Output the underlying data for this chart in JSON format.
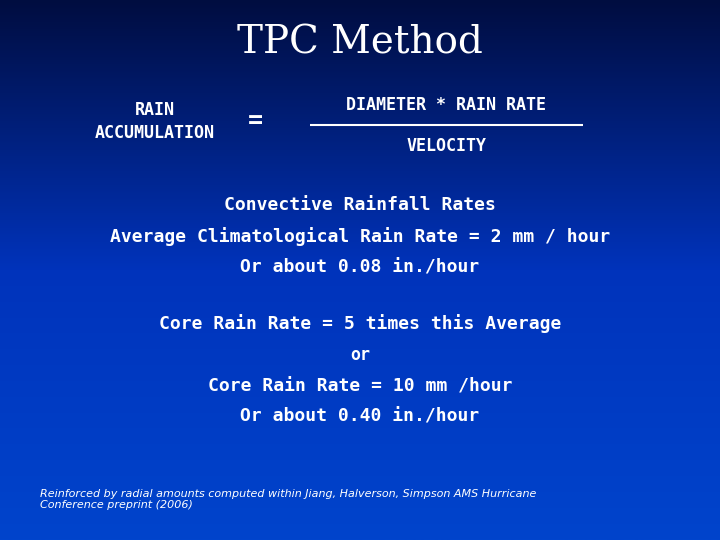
{
  "title": "TPC Method",
  "bg_color_top": "#000d40",
  "bg_color_mid": "#0033bb",
  "text_color": "#ffffff",
  "title_fontsize": 28,
  "formula_left": "RAIN\nACCUMULATION",
  "formula_eq": "=",
  "formula_numerator": "DIAMETER * RAIN RATE",
  "formula_denominator": "VELOCITY",
  "line1": "Convective Rainfall Rates",
  "line2": "Average Climatological Rain Rate = 2 mm / hour",
  "line3": "Or about 0.08 in./hour",
  "line4": "Core Rain Rate = 5 times this Average",
  "line5": "or",
  "line6": "Core Rain Rate = 10 mm /hour",
  "line7": "Or about 0.40 in./hour",
  "footnote": "Reinforced by radial amounts computed within Jiang, Halverson, Simpson AMS Hurricane\nConference preprint (2006)",
  "formula_fontsize": 12,
  "body_fontsize": 13,
  "footnote_fontsize": 8
}
